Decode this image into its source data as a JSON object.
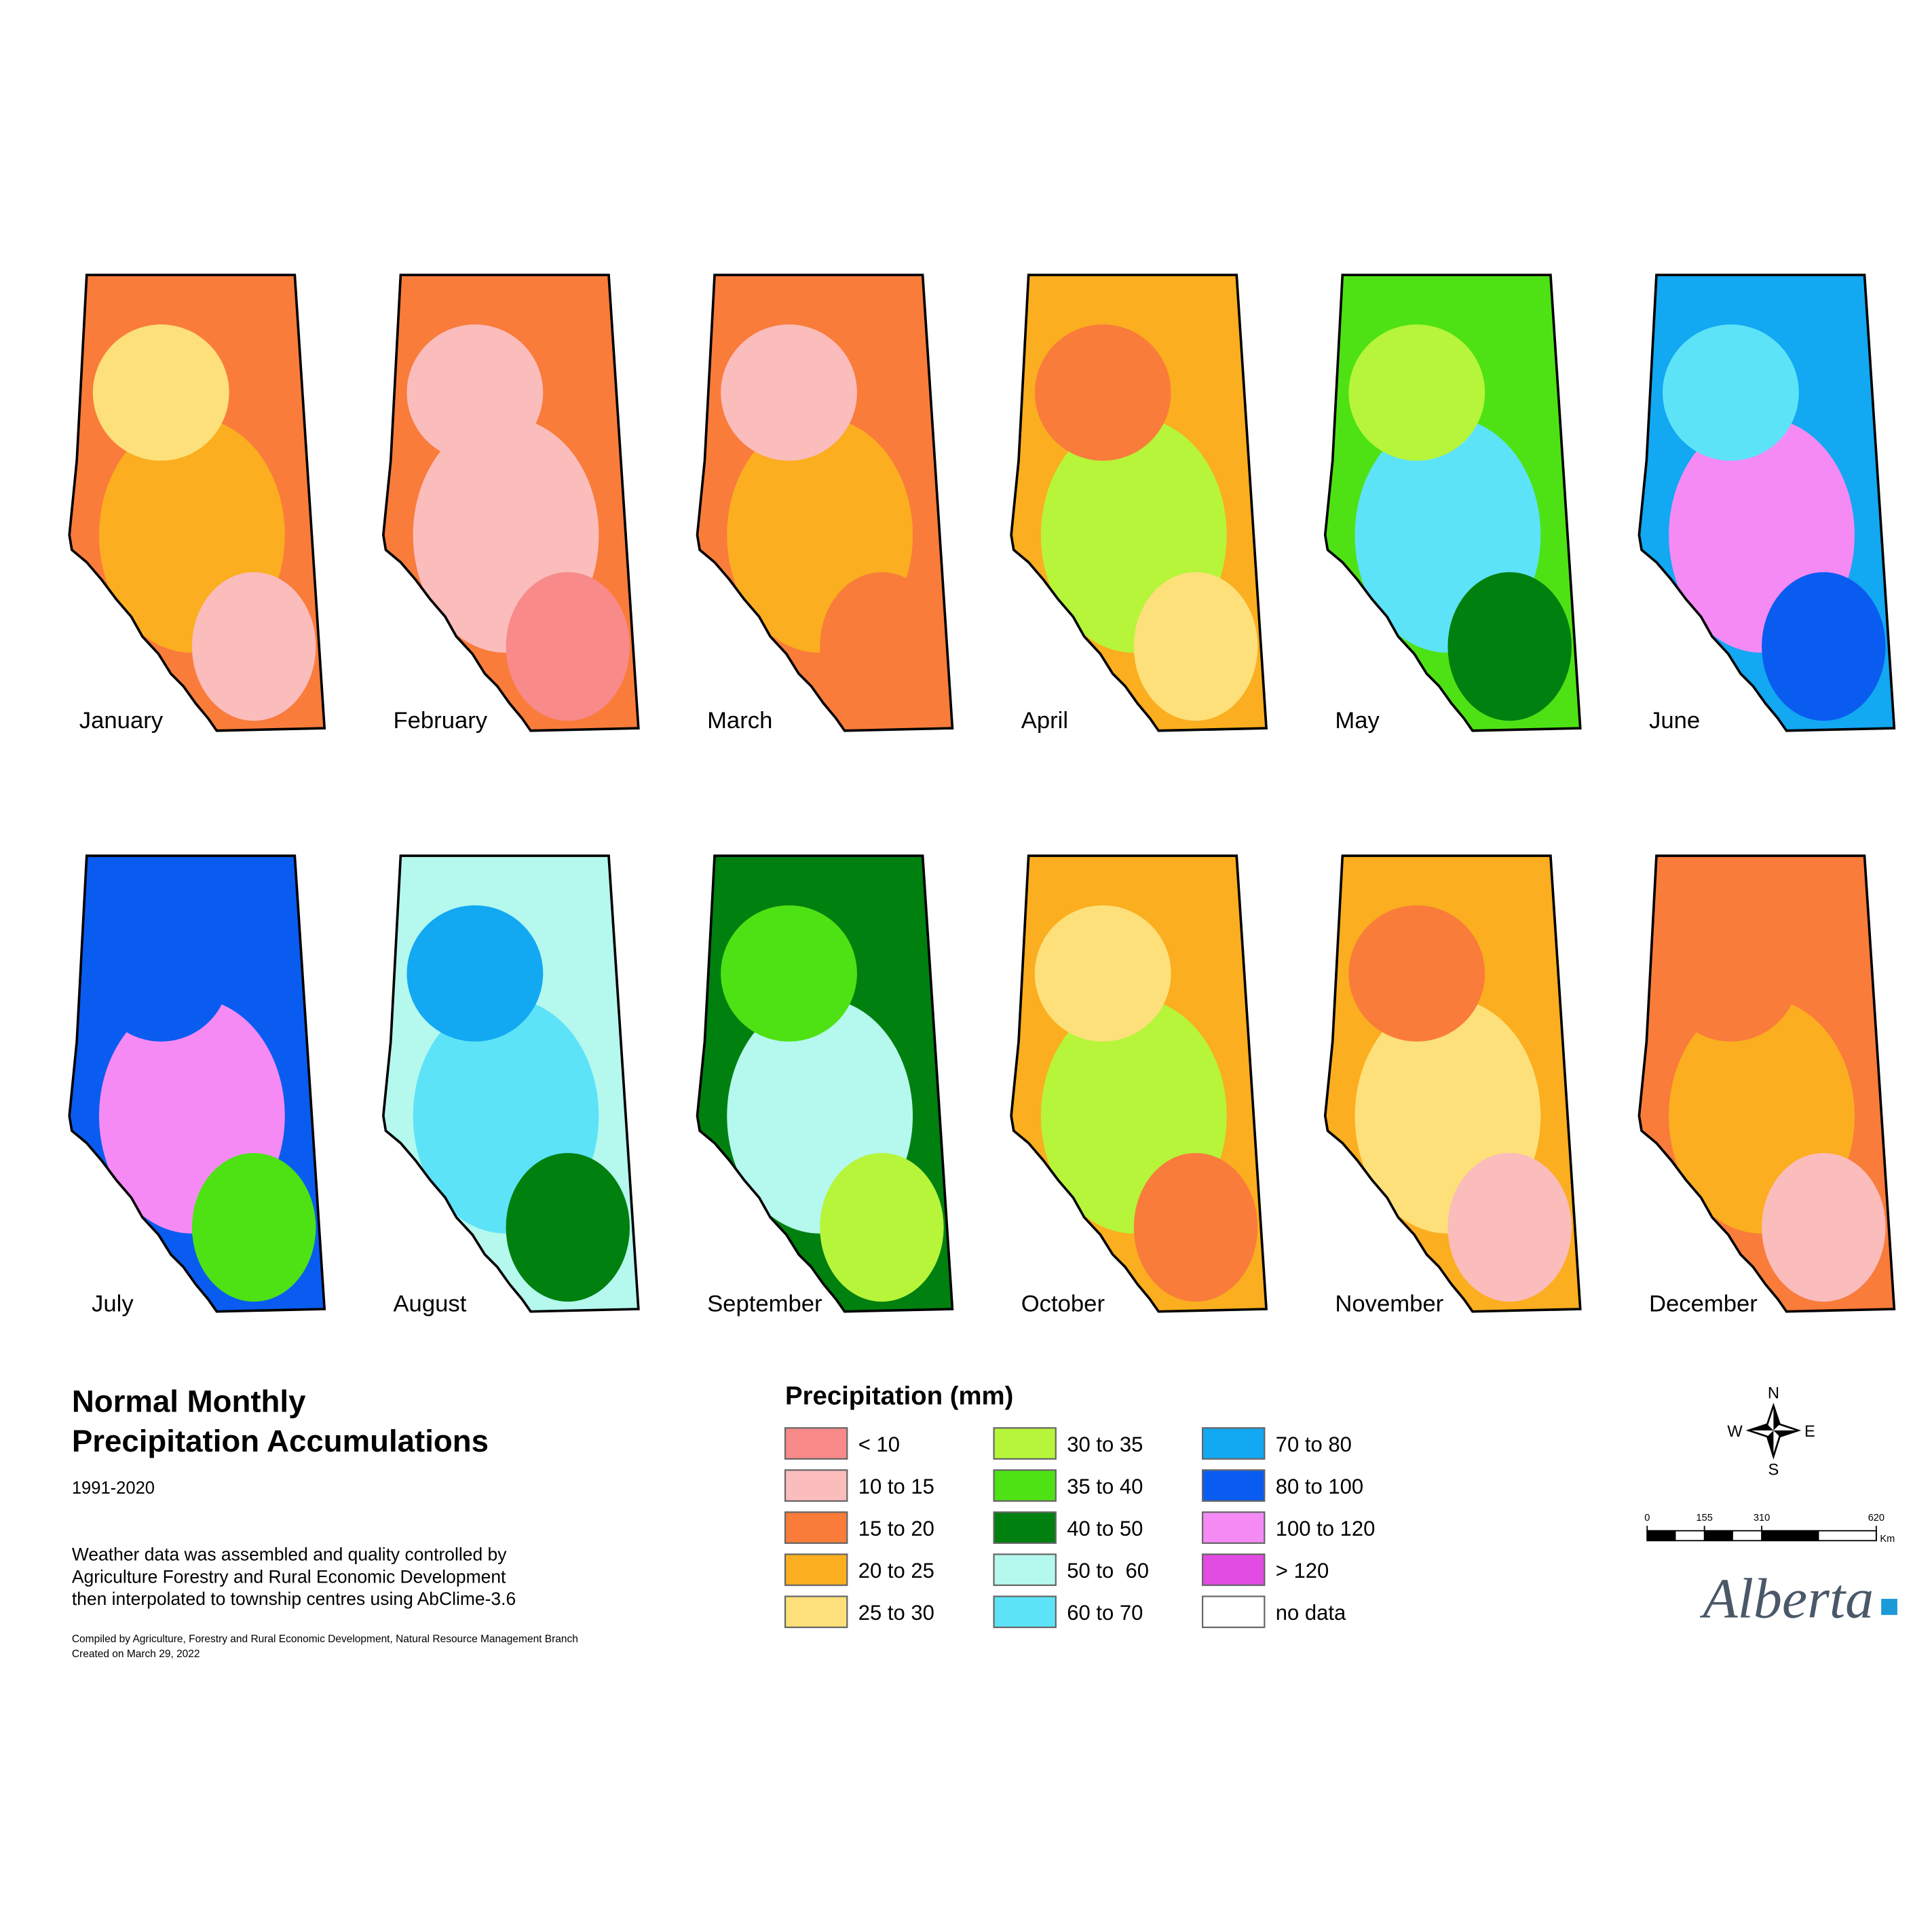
{
  "maps": [
    {
      "month": "January",
      "colors": [
        "#f97c3b",
        "#fbae1f",
        "#fde07a",
        "#fbbcbc"
      ]
    },
    {
      "month": "February",
      "colors": [
        "#f97c3b",
        "#fbbcbc",
        "#fbbcbc",
        "#f88a8a"
      ]
    },
    {
      "month": "March",
      "colors": [
        "#f97c3b",
        "#fbae1f",
        "#fbbcbc",
        "#f97c3b"
      ]
    },
    {
      "month": "April",
      "colors": [
        "#fbae1f",
        "#b6f53a",
        "#f97c3b",
        "#fde07a"
      ]
    },
    {
      "month": "May",
      "colors": [
        "#4ee215",
        "#5de3f8",
        "#b6f53a",
        "#00800f"
      ]
    },
    {
      "month": "June",
      "colors": [
        "#12a8f2",
        "#f58af5",
        "#5de3f8",
        "#0a5cf0"
      ]
    },
    {
      "month": "July",
      "colors": [
        "#0a5cf0",
        "#f58af5",
        "#0a5cf0",
        "#4ee215"
      ]
    },
    {
      "month": "August",
      "colors": [
        "#b5f8ee",
        "#5de3f8",
        "#12a8f2",
        "#00800f"
      ]
    },
    {
      "month": "September",
      "colors": [
        "#00800f",
        "#b5f8ee",
        "#4ee215",
        "#b6f53a"
      ]
    },
    {
      "month": "October",
      "colors": [
        "#fbae1f",
        "#b6f53a",
        "#fde07a",
        "#f97c3b"
      ]
    },
    {
      "month": "November",
      "colors": [
        "#fbae1f",
        "#fde07a",
        "#f97c3b",
        "#fbbcbc"
      ]
    },
    {
      "month": "December",
      "colors": [
        "#f97c3b",
        "#fbae1f",
        "#f97c3b",
        "#fbbcbc"
      ]
    }
  ],
  "title": [
    "Normal Monthly",
    "Precipitation Accumulations"
  ],
  "period": "1991-2020",
  "description": [
    "Weather data was assembled and quality controlled by",
    "Agriculture Forestry and Rural Economic Development",
    "then interpolated to township centres using AbClime-3.6"
  ],
  "credits": [
    "Compiled by Agriculture, Forestry and Rural Economic Development, Natural Resource Management Branch",
    "Created on March 29, 2022"
  ],
  "legend": {
    "title": "Precipitation (mm)",
    "items": [
      {
        "label": "< 10",
        "color": "#f88a8a"
      },
      {
        "label": "10 to 15",
        "color": "#fbbcbc"
      },
      {
        "label": "15 to 20",
        "color": "#f97c3b"
      },
      {
        "label": "20 to 25",
        "color": "#fbae1f"
      },
      {
        "label": "25 to 30",
        "color": "#fde07a"
      },
      {
        "label": "30 to 35",
        "color": "#b6f53a"
      },
      {
        "label": "35 to 40",
        "color": "#4ee215"
      },
      {
        "label": "40 to 50",
        "color": "#00800f"
      },
      {
        "label": "50 to  60",
        "color": "#b5f8ee"
      },
      {
        "label": "60 to 70",
        "color": "#5de3f8"
      },
      {
        "label": "70 to 80",
        "color": "#12a8f2"
      },
      {
        "label": "80 to 100",
        "color": "#0a5cf0"
      },
      {
        "label": "100 to 120",
        "color": "#f58af5"
      },
      {
        "label": "> 120",
        "color": "#e24ce2"
      },
      {
        "label": "no data",
        "color": "#ffffff"
      }
    ]
  },
  "compass": {
    "n": "N",
    "s": "S",
    "e": "E",
    "w": "W"
  },
  "scale": {
    "ticks": [
      0,
      155,
      310,
      620
    ],
    "unit": "Km"
  },
  "logo": "Alberta"
}
